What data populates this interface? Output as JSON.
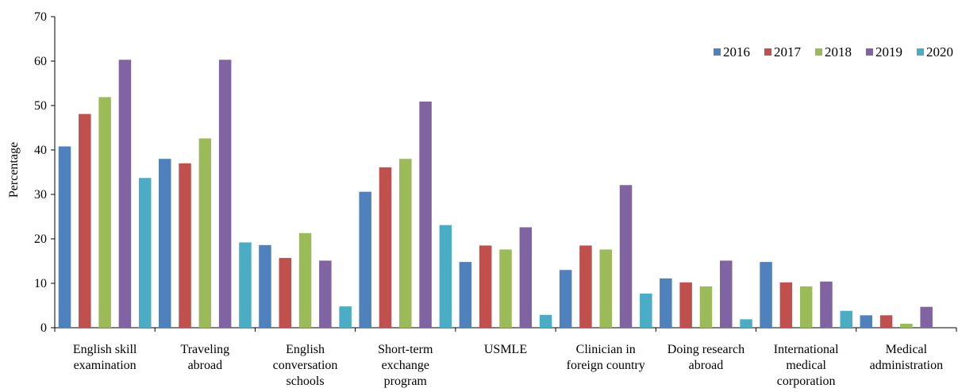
{
  "chart_data": {
    "type": "bar",
    "title": "",
    "xlabel": "",
    "ylabel": "Percentage",
    "ylim": [
      0,
      70
    ],
    "yticks": [
      0,
      10,
      20,
      30,
      40,
      50,
      60,
      70
    ],
    "grid": false,
    "legend_position": "top-right",
    "categories": [
      [
        "English skill",
        "examination"
      ],
      [
        "Traveling",
        "abroad"
      ],
      [
        "English",
        "conversation",
        "schools"
      ],
      [
        "Short-term",
        "exchange",
        "program"
      ],
      [
        "USMLE"
      ],
      [
        "Clinician in",
        "foreign country"
      ],
      [
        "Doing research",
        "abroad"
      ],
      [
        "International",
        "medical",
        "corporation"
      ],
      [
        "Medical",
        "administration"
      ]
    ],
    "series": [
      {
        "name": "2016",
        "color": "#4F81BD",
        "values": [
          40.8,
          38.0,
          18.6,
          30.6,
          14.8,
          13.0,
          11.1,
          14.8,
          2.8
        ]
      },
      {
        "name": "2017",
        "color": "#C0504D",
        "values": [
          48.1,
          37.0,
          15.7,
          36.1,
          18.5,
          18.5,
          10.2,
          10.2,
          2.8
        ]
      },
      {
        "name": "2018",
        "color": "#9BBB59",
        "values": [
          51.9,
          42.6,
          21.3,
          38.0,
          17.6,
          17.6,
          9.3,
          9.3,
          0.9
        ]
      },
      {
        "name": "2019",
        "color": "#8064A2",
        "values": [
          60.3,
          60.3,
          15.1,
          50.9,
          22.6,
          32.1,
          15.1,
          10.4,
          4.7
        ]
      },
      {
        "name": "2020",
        "color": "#4BACC6",
        "values": [
          33.7,
          19.2,
          4.8,
          23.1,
          2.9,
          7.7,
          1.9,
          3.8,
          0.0
        ]
      }
    ]
  }
}
